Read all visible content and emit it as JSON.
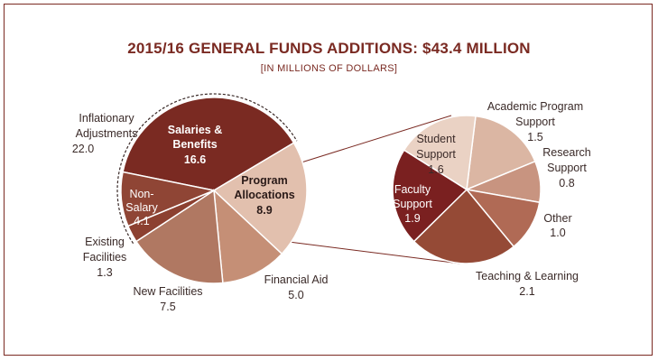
{
  "chart_data": [
    {
      "type": "pie",
      "title": "2015/16 GENERAL FUNDS ADDITIONS: $43.4 MILLION",
      "subtitle": "[IN MILLIONS OF DOLLARS]",
      "slices": [
        {
          "name": "Salaries & Benefits",
          "value": 16.6,
          "color": "#7a2a22"
        },
        {
          "name": "Program Allocations",
          "value": 8.9,
          "color": "#e2c0ae"
        },
        {
          "name": "Financial Aid",
          "value": 5.0,
          "color": "#c58f76"
        },
        {
          "name": "New Facilities",
          "value": 7.5,
          "color": "#b07862"
        },
        {
          "name": "Existing Facilities",
          "value": 1.3,
          "color": "#8c4030"
        },
        {
          "name": "Non-Salary",
          "value": 4.1,
          "color": "#8f4535"
        }
      ],
      "group_label": {
        "name": "Inflationary Adjustments",
        "value": 22.0
      }
    },
    {
      "type": "pie",
      "parent": "Program Allocations",
      "slices": [
        {
          "name": "Academic Program Support",
          "value": 1.5,
          "color": "#dbb6a3"
        },
        {
          "name": "Research Support",
          "value": 0.8,
          "color": "#c89480"
        },
        {
          "name": "Other",
          "value": 1.0,
          "color": "#b06a55"
        },
        {
          "name": "Teaching & Learning",
          "value": 2.1,
          "color": "#954a36"
        },
        {
          "name": "Faculty Support",
          "value": 1.9,
          "color": "#7a2020"
        },
        {
          "name": "Student Support",
          "value": 1.6,
          "color": "#ead2c4"
        }
      ]
    }
  ],
  "labels": {
    "title": "2015/16 GENERAL FUNDS ADDITIONS: $43.4 MILLION",
    "subtitle": "[IN MILLIONS OF DOLLARS]",
    "inflationary_l1": "Inflationary",
    "inflationary_l2": "Adjustments",
    "inflationary_val": "22.0",
    "salaries_l1": "Salaries &",
    "salaries_l2": "Benefits",
    "salaries_val": "16.6",
    "nonsalary_l1": "Non-",
    "nonsalary_l2": "Salary",
    "nonsalary_val": "4.1",
    "program_l1": "Program",
    "program_l2": "Allocations",
    "program_val": "8.9",
    "existing_l1": "Existing",
    "existing_l2": "Facilities",
    "existing_val": "1.3",
    "newfac_l1": "New Facilities",
    "newfac_val": "7.5",
    "finaid_l1": "Financial Aid",
    "finaid_val": "5.0",
    "academic_l1": "Academic Program",
    "academic_l2": "Support",
    "academic_val": "1.5",
    "student_l1": "Student",
    "student_l2": "Support",
    "student_val": "1.6",
    "research_l1": "Research",
    "research_l2": "Support",
    "research_val": "0.8",
    "faculty_l1": "Faculty",
    "faculty_l2": "Support",
    "faculty_val": "1.9",
    "other_l1": "Other",
    "other_val": "1.0",
    "teaching_l1": "Teaching & Learning",
    "teaching_val": "2.1"
  }
}
